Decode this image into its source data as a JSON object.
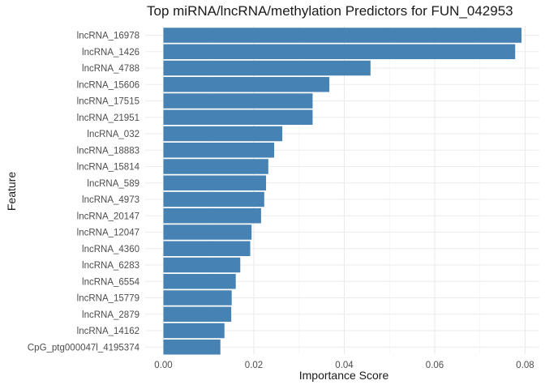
{
  "chart_data": {
    "type": "bar",
    "orientation": "horizontal",
    "title": "Top miRNA/lncRNA/methylation Predictors for FUN_042953",
    "xlabel": "Importance Score",
    "ylabel": "Feature",
    "xlim": [
      0.0,
      0.08
    ],
    "x_ticks": [
      "0.00",
      "0.02",
      "0.04",
      "0.06",
      "0.08"
    ],
    "bar_color": "#4682B4",
    "grid": true,
    "categories": [
      "lncRNA_16978",
      "lncRNA_1426",
      "lncRNA_4788",
      "lncRNA_15606",
      "lncRNA_17515",
      "lncRNA_21951",
      "lncRNA_032",
      "lncRNA_18883",
      "lncRNA_15814",
      "lncRNA_589",
      "lncRNA_4973",
      "lncRNA_20147",
      "lncRNA_12047",
      "lncRNA_4360",
      "lncRNA_6283",
      "lncRNA_6554",
      "lncRNA_15779",
      "lncRNA_2879",
      "lncRNA_14162",
      "CpG_ptg000047l_4195374"
    ],
    "values": [
      0.0792,
      0.0778,
      0.0458,
      0.0367,
      0.033,
      0.033,
      0.0263,
      0.0245,
      0.0232,
      0.0227,
      0.0223,
      0.0216,
      0.0195,
      0.0192,
      0.017,
      0.016,
      0.0151,
      0.015,
      0.0135,
      0.0126
    ]
  }
}
